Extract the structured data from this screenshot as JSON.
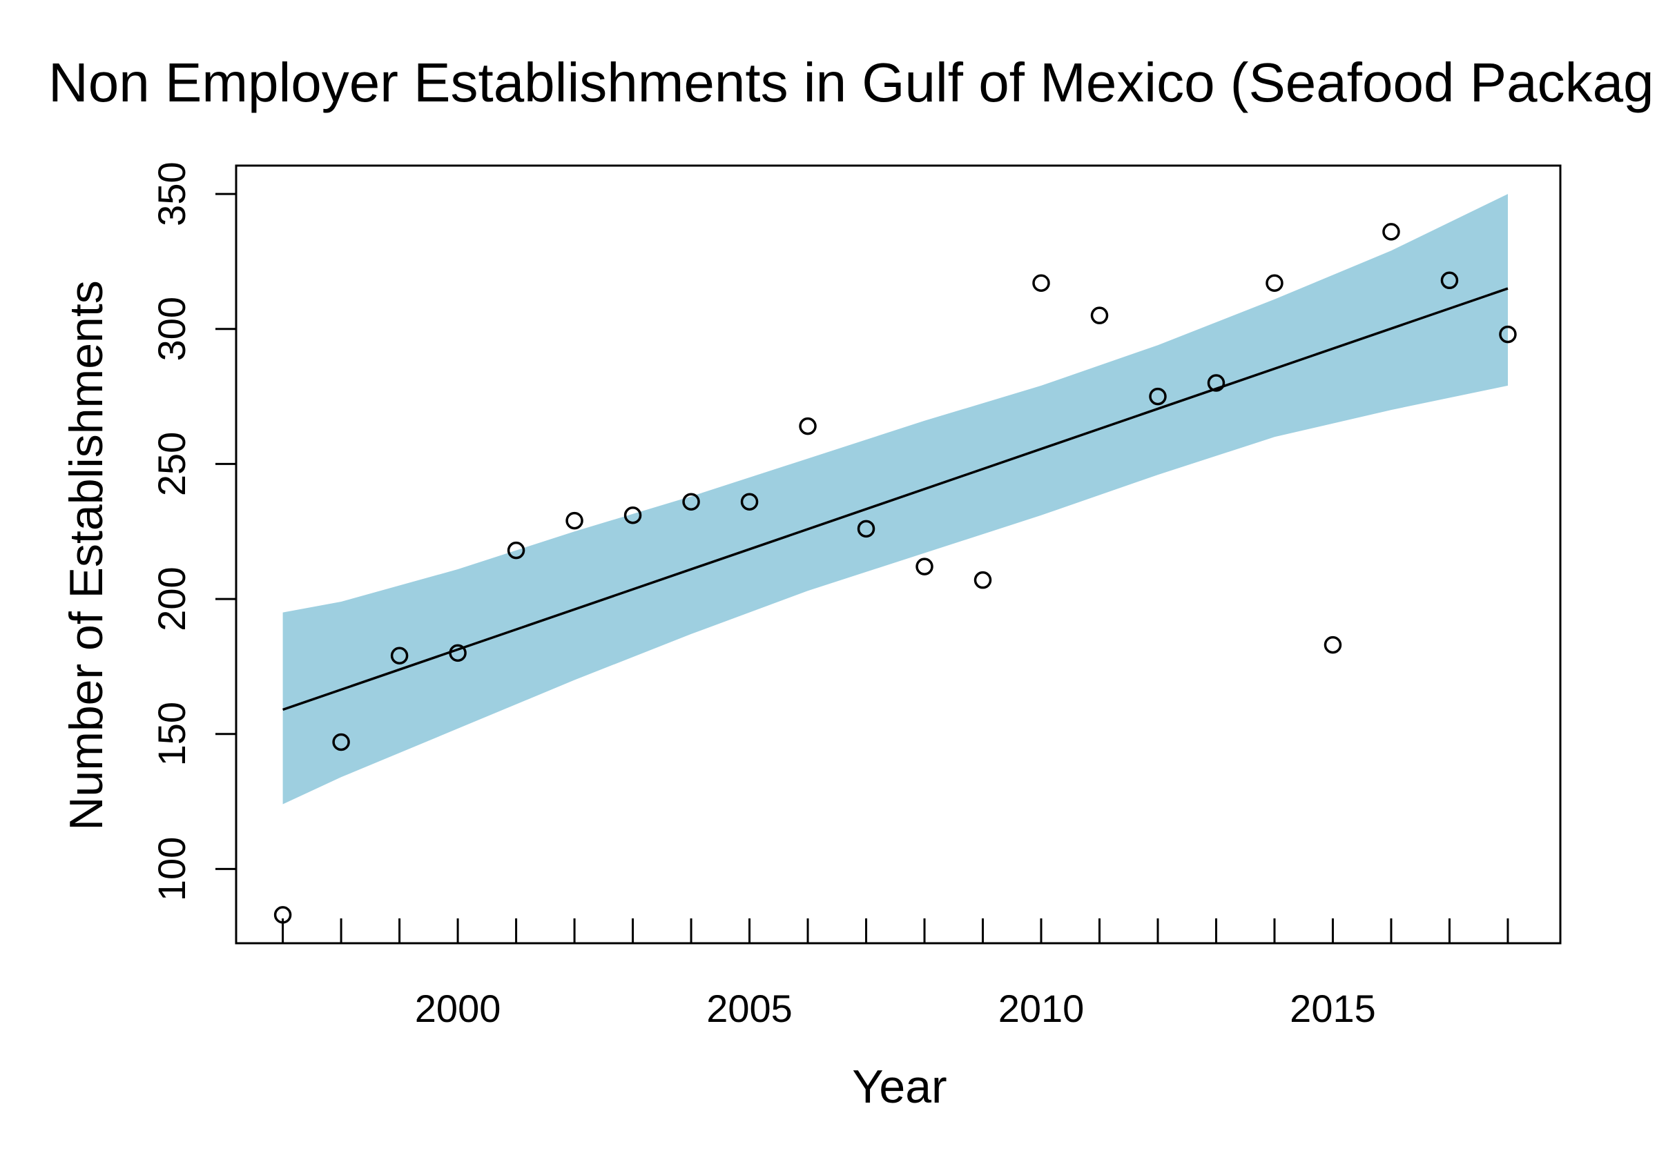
{
  "chart_data": {
    "type": "scatter",
    "title": "Non Employer Establishments in Gulf of Mexico (Seafood Packag",
    "xlabel": "Year",
    "ylabel": "Number of Establishments",
    "xlim": [
      1996.2,
      2018.9
    ],
    "ylim": [
      72.5,
      360.5
    ],
    "x_ticks": [
      1997,
      1998,
      1999,
      2000,
      2001,
      2002,
      2003,
      2004,
      2005,
      2006,
      2007,
      2008,
      2009,
      2010,
      2011,
      2012,
      2013,
      2014,
      2015,
      2016,
      2017,
      2018
    ],
    "x_tick_labels": [
      "2000",
      "2005",
      "2010",
      "2015"
    ],
    "x_tick_label_values": [
      2000,
      2005,
      2010,
      2015
    ],
    "y_ticks": [
      100,
      150,
      200,
      250,
      300,
      350
    ],
    "y_tick_labels": [
      "100",
      "150",
      "200",
      "250",
      "300",
      "350"
    ],
    "grid": false,
    "colors": {
      "band": "#9ecfe0",
      "line": "#000000",
      "points": "#000000"
    },
    "points": {
      "x": [
        1997,
        1998,
        1999,
        2000,
        2001,
        2002,
        2003,
        2004,
        2005,
        2006,
        2007,
        2008,
        2009,
        2010,
        2011,
        2012,
        2013,
        2014,
        2015,
        2016,
        2017,
        2018
      ],
      "y": [
        83,
        147,
        179,
        180,
        218,
        229,
        231,
        236,
        236,
        264,
        226,
        212,
        207,
        317,
        305,
        275,
        280,
        317,
        183,
        336,
        318,
        298
      ]
    },
    "fit_line": {
      "x": [
        1997,
        2018
      ],
      "y": [
        159,
        315
      ]
    },
    "confidence_band": {
      "x": [
        1997,
        1998,
        2000,
        2002,
        2004,
        2006,
        2008,
        2010,
        2012,
        2014,
        2016,
        2018
      ],
      "lower": [
        124,
        134,
        152,
        170,
        187,
        203,
        217,
        231,
        246,
        260,
        270,
        279
      ],
      "upper": [
        195,
        199,
        211,
        225,
        238,
        252,
        266,
        279,
        294,
        311,
        329,
        350
      ]
    }
  }
}
